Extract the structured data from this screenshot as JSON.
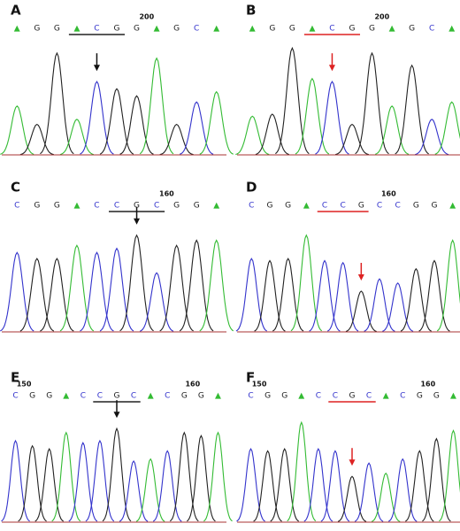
{
  "base_colors": {
    "▲": "#33bb33",
    "G": "#222222",
    "C": "#3333cc"
  },
  "panels": [
    {
      "label": "A",
      "bases": [
        "▲",
        "G",
        "G",
        "▲",
        "C",
        "G",
        "G",
        "▲",
        "G",
        "C",
        "▲"
      ],
      "positions": [
        {
          "text": "200",
          "index": 6
        }
      ],
      "underline": [
        3,
        5
      ],
      "underline_color": "#222222",
      "arrow": 4,
      "arrow_color": "#111111",
      "peaks": [
        48,
        30,
        100,
        35,
        72,
        65,
        58,
        95,
        30,
        52,
        62
      ]
    },
    {
      "label": "B",
      "bases": [
        "▲",
        "G",
        "G",
        "▲",
        "C",
        "G",
        "G",
        "▲",
        "G",
        "C",
        "▲"
      ],
      "positions": [
        {
          "text": "200",
          "index": 6
        }
      ],
      "underline": [
        3,
        5
      ],
      "underline_color": "#dd2222",
      "arrow": 4,
      "arrow_color": "#dd2222",
      "peaks": [
        38,
        40,
        105,
        75,
        72,
        30,
        100,
        48,
        88,
        35,
        52
      ]
    },
    {
      "label": "C",
      "bases": [
        "C",
        "G",
        "G",
        "▲",
        "C",
        "C",
        "G",
        "C",
        "G",
        "G",
        "▲"
      ],
      "positions": [
        {
          "text": "160",
          "index": 7
        }
      ],
      "underline": [
        5,
        7
      ],
      "underline_color": "#222222",
      "arrow": 6,
      "arrow_color": "#111111",
      "peaks": [
        78,
        72,
        72,
        85,
        78,
        82,
        95,
        58,
        85,
        90,
        90
      ]
    },
    {
      "label": "D",
      "bases": [
        "C",
        "G",
        "G",
        "▲",
        "C",
        "C",
        "G",
        "C",
        "C",
        "G",
        "G",
        "▲"
      ],
      "positions": [
        {
          "text": "160",
          "index": 7
        }
      ],
      "underline": [
        4,
        6
      ],
      "underline_color": "#dd2222",
      "arrow": 6,
      "arrow_color": "#dd2222",
      "peaks": [
        72,
        70,
        72,
        95,
        70,
        68,
        40,
        52,
        48,
        62,
        70,
        90
      ]
    },
    {
      "label": "E",
      "bases": [
        "C",
        "G",
        "G",
        "▲",
        "C",
        "C",
        "G",
        "C",
        "▲",
        "C",
        "G",
        "G",
        "▲"
      ],
      "positions": [
        {
          "text": "150",
          "index": 0
        },
        {
          "text": "160",
          "index": 10
        }
      ],
      "underline": [
        5,
        7
      ],
      "underline_color": "#222222",
      "arrow": 6,
      "arrow_color": "#111111",
      "peaks": [
        80,
        75,
        72,
        88,
        78,
        80,
        92,
        60,
        62,
        70,
        88,
        85,
        88
      ]
    },
    {
      "label": "F",
      "bases": [
        "C",
        "G",
        "G",
        "▲",
        "C",
        "C",
        "G",
        "C",
        "▲",
        "C",
        "G",
        "G",
        "▲"
      ],
      "positions": [
        {
          "text": "150",
          "index": 0
        },
        {
          "text": "160",
          "index": 10
        }
      ],
      "underline": [
        5,
        7
      ],
      "underline_color": "#dd2222",
      "arrow": 6,
      "arrow_color": "#dd2222",
      "peaks": [
        72,
        70,
        72,
        98,
        72,
        70,
        45,
        58,
        48,
        62,
        70,
        82,
        90
      ]
    }
  ]
}
